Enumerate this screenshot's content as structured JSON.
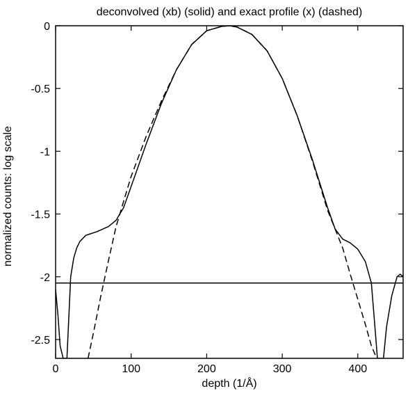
{
  "chart_data": {
    "type": "line",
    "title": "deconvolved (xb) (solid) and exact profile (x) (dashed)",
    "xlabel": "depth (1/Å)",
    "ylabel": "normalized counts: log scale",
    "xlim": [
      0,
      460
    ],
    "ylim": [
      -2.65,
      0
    ],
    "xticks": [
      0,
      100,
      200,
      300,
      400
    ],
    "xtick_labels": [
      "0",
      "100",
      "200",
      "300",
      "400"
    ],
    "yticks": [
      0,
      -0.5,
      -1,
      -1.5,
      -2,
      -2.5
    ],
    "ytick_labels": [
      "0",
      "-0.5",
      "-1",
      "-1.5",
      "-2",
      "-2.5"
    ],
    "grid": false,
    "series": [
      {
        "style": "solid",
        "x": [
          0,
          3,
          6,
          10,
          15,
          20,
          24,
          28,
          32,
          40,
          55,
          70,
          80,
          90,
          100,
          120,
          140,
          160,
          180,
          200,
          220,
          230,
          240,
          260,
          280,
          300,
          320,
          340,
          360,
          370,
          380,
          390,
          400,
          410,
          418,
          422,
          426,
          430,
          434,
          438,
          445,
          452,
          456,
          460
        ],
        "y": [
          -2.1,
          -2.3,
          -2.55,
          -2.65,
          -2.65,
          -2.0,
          -1.85,
          -1.77,
          -1.72,
          -1.67,
          -1.64,
          -1.6,
          -1.55,
          -1.45,
          -1.28,
          -0.94,
          -0.62,
          -0.35,
          -0.15,
          -0.04,
          -0.005,
          0.0,
          -0.01,
          -0.07,
          -0.2,
          -0.42,
          -0.72,
          -1.07,
          -1.45,
          -1.62,
          -1.7,
          -1.73,
          -1.78,
          -1.88,
          -2.05,
          -2.35,
          -2.65,
          -2.65,
          -2.65,
          -2.4,
          -2.15,
          -2.0,
          -1.98,
          -2.0
        ]
      },
      {
        "style": "dashed",
        "x": [
          43,
          50,
          60,
          70,
          80,
          90,
          100,
          120,
          140,
          160,
          180,
          200,
          220,
          230,
          240,
          260,
          280,
          300,
          320,
          340,
          360,
          380,
          390,
          400,
          410,
          418,
          425
        ],
        "y": [
          -2.65,
          -2.45,
          -2.15,
          -1.87,
          -1.6,
          -1.4,
          -1.2,
          -0.88,
          -0.6,
          -0.35,
          -0.15,
          -0.04,
          -0.005,
          0.0,
          -0.01,
          -0.07,
          -0.2,
          -0.42,
          -0.72,
          -1.08,
          -1.47,
          -1.77,
          -1.98,
          -2.18,
          -2.38,
          -2.55,
          -2.65
        ]
      },
      {
        "style": "solid",
        "x": [
          0,
          460
        ],
        "y": [
          -2.05,
          -2.05
        ]
      }
    ]
  }
}
